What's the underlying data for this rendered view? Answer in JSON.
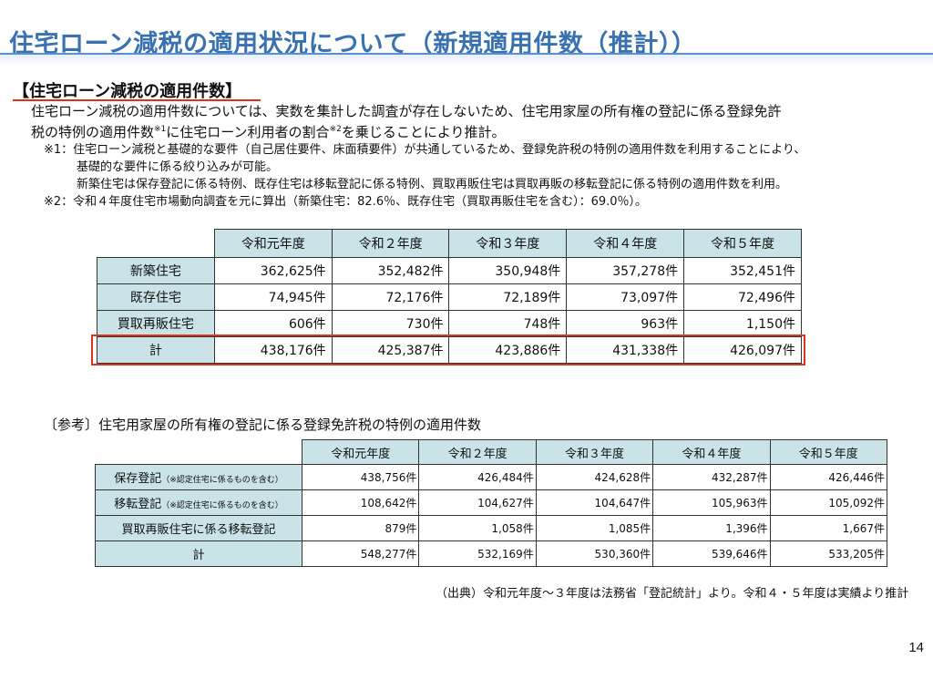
{
  "title": "住宅ローン減税の適用状況について（新規適用件数（推計））",
  "section": {
    "heading": "【住宅ローン減税の適用件数】",
    "desc_line1": "住宅ローン減税の適用件数については、実数を集計した調査が存在しないため、住宅用家屋の所有権の登記に係る登録免許",
    "desc_line2a": "税の特例の適用件数",
    "desc_sup1": "※1",
    "desc_line2b": "に住宅ローン利用者の割合",
    "desc_sup2": "※2",
    "desc_line2c": "を乗じることにより推計。",
    "note1a": "※1：住宅ローン減税と基礎的な要件（自己居住要件、床面積要件）が共通しているため、登録免許税の特例の適用件数を利用することにより、",
    "note1b": "基礎的な要件に係る絞り込みが可能。",
    "note1c": "新築住宅は保存登記に係る特例、既存住宅は移転登記に係る特例、買取再販住宅は買取再販の移転登記に係る特例の適用件数を利用。",
    "note2": "※2：令和４年度住宅市場動向調査を元に算出（新築住宅：82.6％、既存住宅（買取再販住宅を含む）：69.0％）。"
  },
  "table1": {
    "headers": [
      "令和元年度",
      "令和２年度",
      "令和３年度",
      "令和４年度",
      "令和５年度"
    ],
    "rows": [
      {
        "label": "新築住宅",
        "values": [
          "362,625件",
          "352,482件",
          "350,948件",
          "357,278件",
          "352,451件"
        ]
      },
      {
        "label": "既存住宅",
        "values": [
          "74,945件",
          "72,176件",
          "72,189件",
          "73,097件",
          "72,496件"
        ]
      },
      {
        "label": "買取再販住宅",
        "values": [
          "606件",
          "730件",
          "748件",
          "963件",
          "1,150件"
        ]
      },
      {
        "label": "計",
        "values": [
          "438,176件",
          "425,387件",
          "423,886件",
          "431,338件",
          "426,097件"
        ]
      }
    ]
  },
  "reference": {
    "heading": "〔参考〕住宅用家屋の所有権の登記に係る登録免許税の特例の適用件数",
    "headers": [
      "令和元年度",
      "令和２年度",
      "令和３年度",
      "令和４年度",
      "令和５年度"
    ],
    "rows": [
      {
        "label": "保存登記",
        "note": "（※認定住宅に係るものを含む）",
        "values": [
          "438,756件",
          "426,484件",
          "424,628件",
          "432,287件",
          "426,446件"
        ]
      },
      {
        "label": "移転登記",
        "note": "（※認定住宅に係るものを含む）",
        "values": [
          "108,642件",
          "104,627件",
          "104,647件",
          "105,963件",
          "105,092件"
        ]
      },
      {
        "label": "買取再販住宅に係る移転登記",
        "note": "",
        "values": [
          "879件",
          "1,058件",
          "1,085件",
          "1,396件",
          "1,667件"
        ]
      },
      {
        "label": "計",
        "note": "",
        "values": [
          "548,277件",
          "532,169件",
          "530,360件",
          "539,646件",
          "533,205件"
        ]
      }
    ]
  },
  "source": "（出典）令和元年度～３年度は法務省「登記統計」より。令和４・５年度は実績より推計",
  "page_number": "14",
  "colors": {
    "title": "#3a72b0",
    "header_fill": "#c9e3e6",
    "highlight": "#e0301e"
  }
}
